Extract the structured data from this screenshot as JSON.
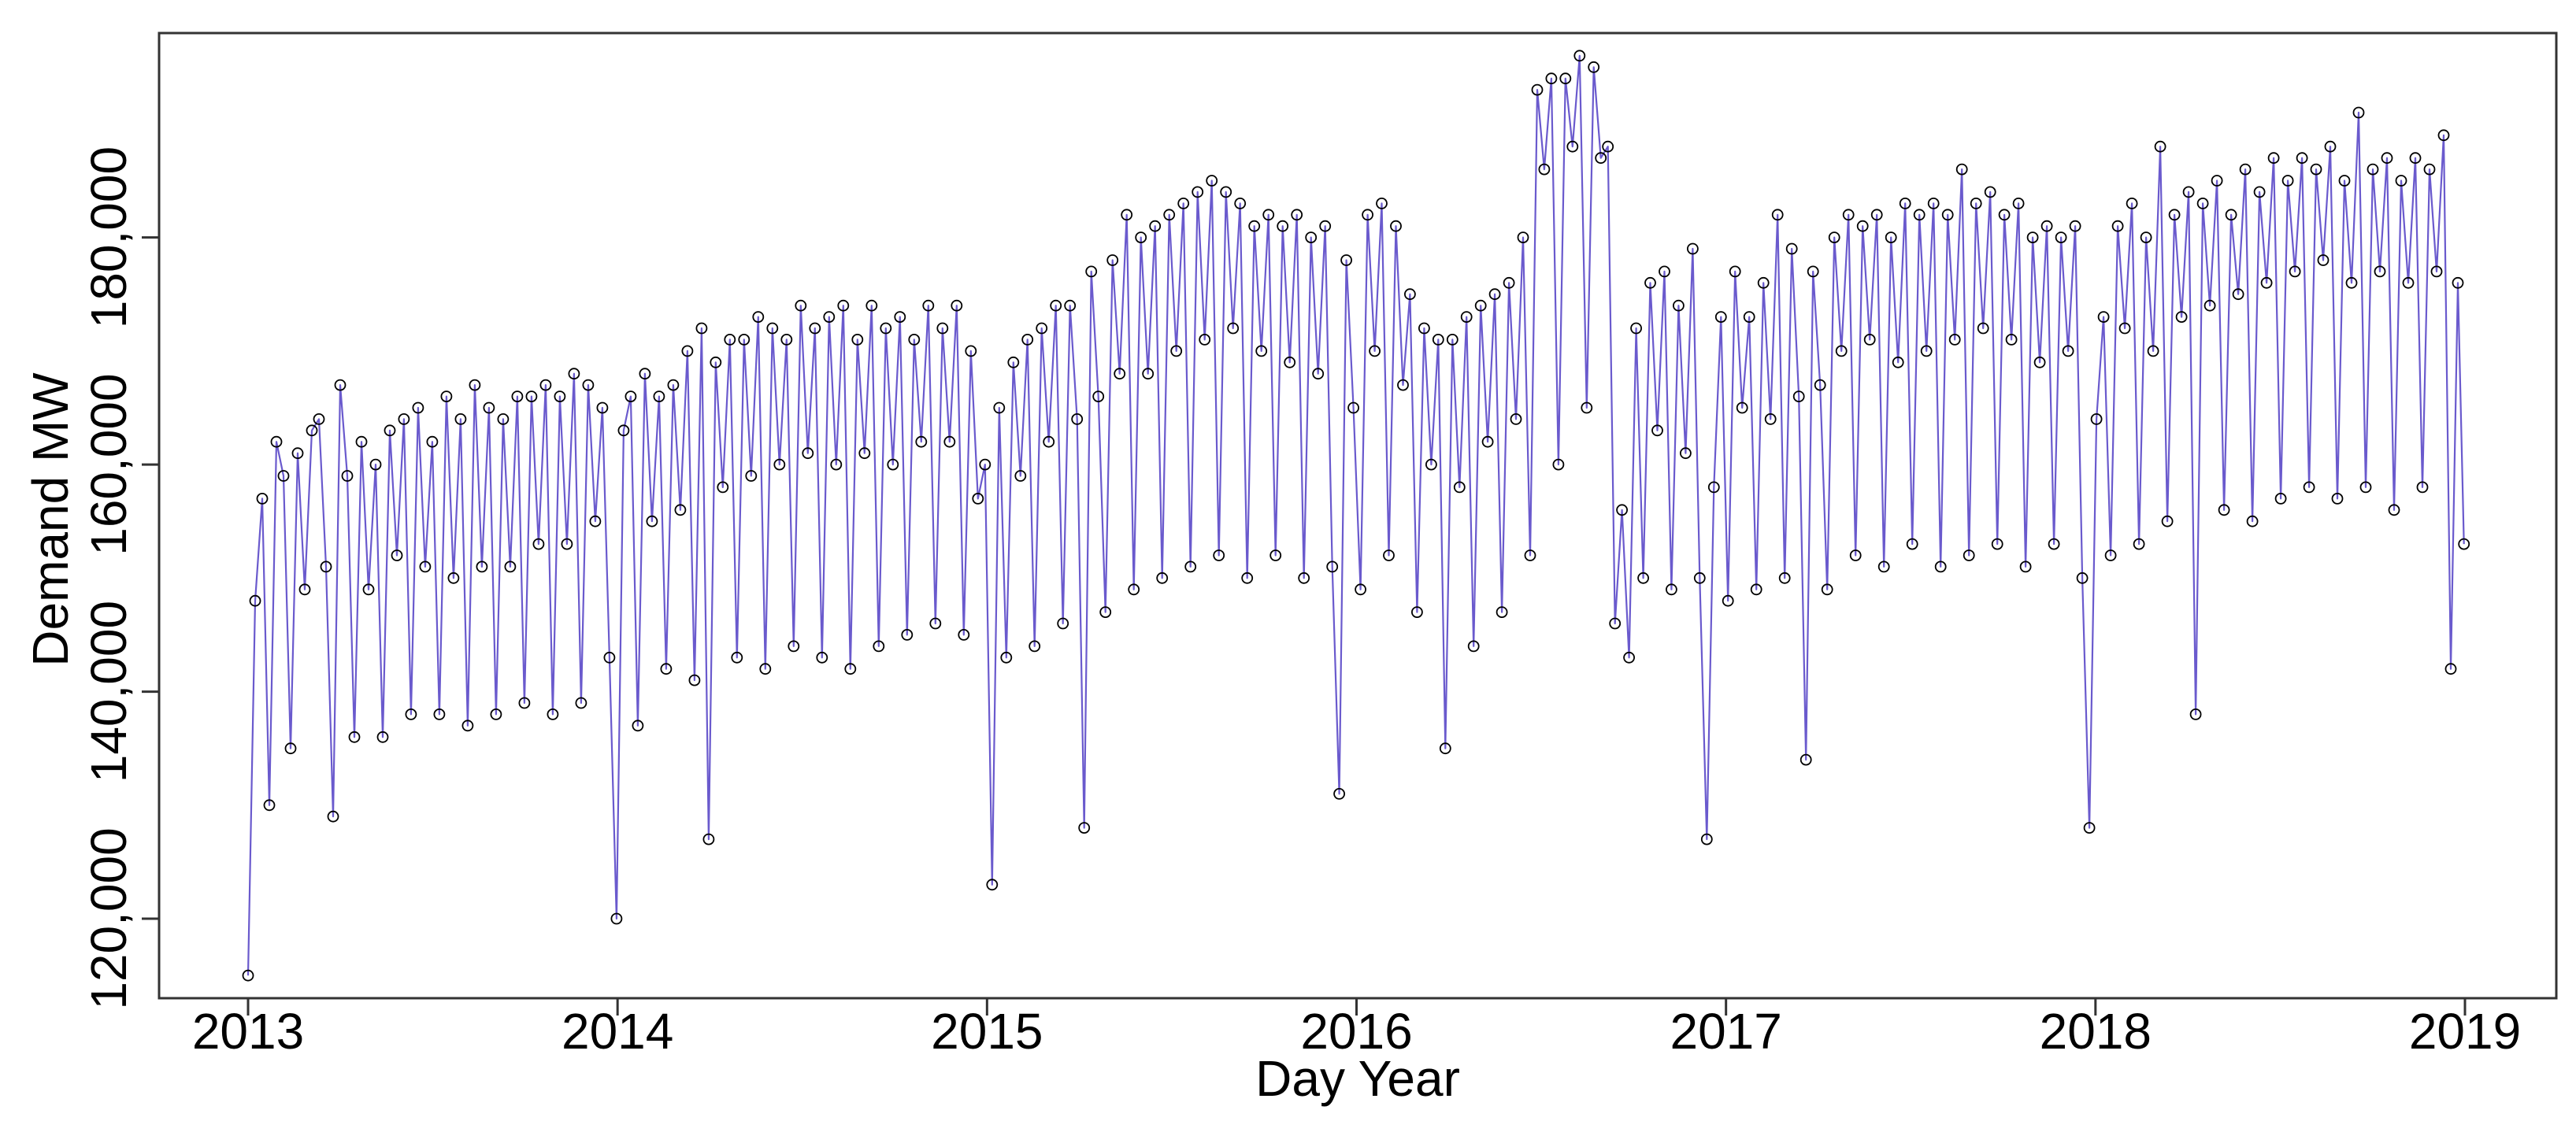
{
  "chart_data": {
    "type": "line",
    "title": "",
    "xlabel": "Day Year",
    "ylabel": "Demand MW",
    "x_ticks": [
      "2013",
      "2014",
      "2015",
      "2016",
      "2017",
      "2018",
      "2019"
    ],
    "y_ticks": [
      "120,000",
      "140,000",
      "160,000",
      "180,000"
    ],
    "x_range": [
      2013,
      2019
    ],
    "ylim": [
      113000,
      198000
    ],
    "grid": false,
    "legend": "none",
    "marker": "open-circle",
    "line_color": "#6a5acd",
    "marker_color": "#000000",
    "sampling": "weekly",
    "series": [
      {
        "x": [
          "2013-01-01",
          "2013-01-08",
          "2013-01-15",
          "2013-01-22",
          "2013-01-29",
          "2013-02-05",
          "2013-02-12",
          "2013-02-19",
          "2013-02-26",
          "2013-03-05",
          "2013-03-12",
          "2013-03-19",
          "2013-03-26",
          "2013-04-02",
          "2013-04-09",
          "2013-04-16",
          "2013-04-23",
          "2013-04-30",
          "2013-05-07",
          "2013-05-14",
          "2013-05-21",
          "2013-05-28",
          "2013-06-04",
          "2013-06-11",
          "2013-06-18",
          "2013-06-25",
          "2013-07-02",
          "2013-07-09",
          "2013-07-16",
          "2013-07-23",
          "2013-07-30",
          "2013-08-06",
          "2013-08-13",
          "2013-08-20",
          "2013-08-27",
          "2013-09-03",
          "2013-09-10",
          "2013-09-17",
          "2013-09-24",
          "2013-10-01",
          "2013-10-08",
          "2013-10-15",
          "2013-10-22",
          "2013-10-29",
          "2013-11-05",
          "2013-11-12",
          "2013-11-19",
          "2013-11-26",
          "2013-12-03",
          "2013-12-10",
          "2013-12-17",
          "2013-12-24",
          "2013-12-31",
          "2014-01-07",
          "2014-01-14",
          "2014-01-21",
          "2014-01-28",
          "2014-02-04",
          "2014-02-11",
          "2014-02-18",
          "2014-02-25",
          "2014-03-04",
          "2014-03-11",
          "2014-03-18",
          "2014-03-25",
          "2014-04-01",
          "2014-04-08",
          "2014-04-15",
          "2014-04-22",
          "2014-04-29",
          "2014-05-06",
          "2014-05-13",
          "2014-05-20",
          "2014-05-27",
          "2014-06-03",
          "2014-06-10",
          "2014-06-17",
          "2014-06-24",
          "2014-07-01",
          "2014-07-08",
          "2014-07-15",
          "2014-07-22",
          "2014-07-29",
          "2014-08-05",
          "2014-08-12",
          "2014-08-19",
          "2014-08-26",
          "2014-09-02",
          "2014-09-09",
          "2014-09-16",
          "2014-09-23",
          "2014-09-30",
          "2014-10-07",
          "2014-10-14",
          "2014-10-21",
          "2014-10-28",
          "2014-11-04",
          "2014-11-11",
          "2014-11-18",
          "2014-11-25",
          "2014-12-02",
          "2014-12-09",
          "2014-12-16",
          "2014-12-23",
          "2014-12-30",
          "2015-01-06",
          "2015-01-13",
          "2015-01-20",
          "2015-01-27",
          "2015-02-03",
          "2015-02-10",
          "2015-02-17",
          "2015-02-24",
          "2015-03-03",
          "2015-03-10",
          "2015-03-17",
          "2015-03-24",
          "2015-03-31",
          "2015-04-07",
          "2015-04-14",
          "2015-04-21",
          "2015-04-28",
          "2015-05-05",
          "2015-05-12",
          "2015-05-19",
          "2015-05-26",
          "2015-06-02",
          "2015-06-09",
          "2015-06-16",
          "2015-06-23",
          "2015-06-30",
          "2015-07-07",
          "2015-07-14",
          "2015-07-21",
          "2015-07-28",
          "2015-08-04",
          "2015-08-11",
          "2015-08-18",
          "2015-08-25",
          "2015-09-01",
          "2015-09-08",
          "2015-09-15",
          "2015-09-22",
          "2015-09-29",
          "2015-10-06",
          "2015-10-13",
          "2015-10-20",
          "2015-10-27",
          "2015-11-03",
          "2015-11-10",
          "2015-11-17",
          "2015-11-24",
          "2015-12-01",
          "2015-12-08",
          "2015-12-15",
          "2015-12-22",
          "2015-12-29",
          "2016-01-05",
          "2016-01-12",
          "2016-01-19",
          "2016-01-26",
          "2016-02-02",
          "2016-02-09",
          "2016-02-16",
          "2016-02-23",
          "2016-03-01",
          "2016-03-08",
          "2016-03-15",
          "2016-03-22",
          "2016-03-29",
          "2016-04-05",
          "2016-04-12",
          "2016-04-19",
          "2016-04-26",
          "2016-05-03",
          "2016-05-10",
          "2016-05-17",
          "2016-05-24",
          "2016-05-31",
          "2016-06-07",
          "2016-06-14",
          "2016-06-21",
          "2016-06-28",
          "2016-07-05",
          "2016-07-12",
          "2016-07-19",
          "2016-07-26",
          "2016-08-02",
          "2016-08-09",
          "2016-08-16",
          "2016-08-23",
          "2016-08-30",
          "2016-09-06",
          "2016-09-13",
          "2016-09-20",
          "2016-09-27",
          "2016-10-04",
          "2016-10-11",
          "2016-10-18",
          "2016-10-25",
          "2016-11-01",
          "2016-11-08",
          "2016-11-15",
          "2016-11-22",
          "2016-11-29",
          "2016-12-06",
          "2016-12-13",
          "2016-12-20",
          "2016-12-27",
          "2017-01-03",
          "2017-01-10",
          "2017-01-17",
          "2017-01-24",
          "2017-01-31",
          "2017-02-07",
          "2017-02-14",
          "2017-02-21",
          "2017-02-28",
          "2017-03-07",
          "2017-03-14",
          "2017-03-21",
          "2017-03-28",
          "2017-04-04",
          "2017-04-11",
          "2017-04-18",
          "2017-04-25",
          "2017-05-02",
          "2017-05-09",
          "2017-05-16",
          "2017-05-23",
          "2017-05-30",
          "2017-06-06",
          "2017-06-13",
          "2017-06-20",
          "2017-06-27",
          "2017-07-04",
          "2017-07-11",
          "2017-07-18",
          "2017-07-25",
          "2017-08-01",
          "2017-08-08",
          "2017-08-15",
          "2017-08-22",
          "2017-08-29",
          "2017-09-05",
          "2017-09-12",
          "2017-09-19",
          "2017-09-26",
          "2017-10-03",
          "2017-10-10",
          "2017-10-17",
          "2017-10-24",
          "2017-10-31",
          "2017-11-07",
          "2017-11-14",
          "2017-11-21",
          "2017-11-28",
          "2017-12-05",
          "2017-12-12",
          "2017-12-19",
          "2017-12-26",
          "2018-01-02",
          "2018-01-09",
          "2018-01-16",
          "2018-01-23",
          "2018-01-30",
          "2018-02-06",
          "2018-02-13",
          "2018-02-20",
          "2018-02-27",
          "2018-03-06",
          "2018-03-13",
          "2018-03-20",
          "2018-03-27",
          "2018-04-03",
          "2018-04-10",
          "2018-04-17",
          "2018-04-24",
          "2018-05-01",
          "2018-05-08",
          "2018-05-15",
          "2018-05-22",
          "2018-05-29",
          "2018-06-05",
          "2018-06-12",
          "2018-06-19",
          "2018-06-26",
          "2018-07-03",
          "2018-07-10",
          "2018-07-17",
          "2018-07-24",
          "2018-07-31",
          "2018-08-07",
          "2018-08-14",
          "2018-08-21",
          "2018-08-28",
          "2018-09-04",
          "2018-09-11",
          "2018-09-18",
          "2018-09-25",
          "2018-10-02",
          "2018-10-09",
          "2018-10-16",
          "2018-10-23",
          "2018-10-30",
          "2018-11-06",
          "2018-11-13",
          "2018-11-20",
          "2018-11-27",
          "2018-12-04",
          "2018-12-11",
          "2018-12-18",
          "2018-12-25",
          "2018-12-31"
        ],
        "y": [
          115000,
          148000,
          157000,
          130000,
          162000,
          159000,
          135000,
          161000,
          149000,
          163000,
          164000,
          151000,
          129000,
          167000,
          159000,
          136000,
          162000,
          149000,
          160000,
          136000,
          163000,
          152000,
          164000,
          138000,
          165000,
          151000,
          162000,
          138000,
          166000,
          150000,
          164000,
          137000,
          167000,
          151000,
          165000,
          138000,
          164000,
          151000,
          166000,
          139000,
          166000,
          153000,
          167000,
          138000,
          166000,
          153000,
          168000,
          139000,
          167000,
          155000,
          165000,
          143000,
          120000,
          163000,
          166000,
          137000,
          168000,
          155000,
          166000,
          142000,
          167000,
          156000,
          170000,
          141000,
          172000,
          127000,
          169000,
          158000,
          171000,
          143000,
          171000,
          159000,
          173000,
          142000,
          172000,
          160000,
          171000,
          144000,
          174000,
          161000,
          172000,
          143000,
          173000,
          160000,
          174000,
          142000,
          171000,
          161000,
          174000,
          144000,
          172000,
          160000,
          173000,
          145000,
          171000,
          162000,
          174000,
          146000,
          172000,
          162000,
          174000,
          145000,
          170000,
          157000,
          160000,
          123000,
          165000,
          143000,
          169000,
          159000,
          171000,
          144000,
          172000,
          162000,
          174000,
          146000,
          174000,
          164000,
          128000,
          177000,
          166000,
          147000,
          178000,
          168000,
          182000,
          149000,
          180000,
          168000,
          181000,
          150000,
          182000,
          170000,
          183000,
          151000,
          184000,
          171000,
          185000,
          152000,
          184000,
          172000,
          183000,
          150000,
          181000,
          170000,
          182000,
          152000,
          181000,
          169000,
          182000,
          150000,
          180000,
          168000,
          181000,
          151000,
          131000,
          178000,
          165000,
          149000,
          182000,
          170000,
          183000,
          152000,
          181000,
          167000,
          175000,
          147000,
          172000,
          160000,
          171000,
          135000,
          171000,
          158000,
          173000,
          144000,
          174000,
          162000,
          175000,
          147000,
          176000,
          164000,
          180000,
          152000,
          193000,
          186000,
          194000,
          160000,
          194000,
          188000,
          196000,
          165000,
          195000,
          187000,
          188000,
          146000,
          156000,
          143000,
          172000,
          150000,
          176000,
          163000,
          177000,
          149000,
          174000,
          161000,
          179000,
          150000,
          127000,
          158000,
          173000,
          148000,
          177000,
          165000,
          173000,
          149000,
          176000,
          164000,
          182000,
          150000,
          179000,
          166000,
          134000,
          177000,
          167000,
          149000,
          180000,
          170000,
          182000,
          152000,
          181000,
          171000,
          182000,
          151000,
          180000,
          169000,
          183000,
          153000,
          182000,
          170000,
          183000,
          151000,
          182000,
          171000,
          186000,
          152000,
          183000,
          172000,
          184000,
          153000,
          182000,
          171000,
          183000,
          151000,
          180000,
          169000,
          181000,
          153000,
          180000,
          170000,
          181000,
          150000,
          128000,
          164000,
          173000,
          152000,
          181000,
          172000,
          183000,
          153000,
          180000,
          170000,
          188000,
          155000,
          182000,
          173000,
          184000,
          138000,
          183000,
          174000,
          185000,
          156000,
          182000,
          175000,
          186000,
          155000,
          184000,
          176000,
          187000,
          157000,
          185000,
          177000,
          187000,
          158000,
          186000,
          178000,
          188000,
          157000,
          185000,
          176000,
          191000,
          158000,
          186000,
          177000,
          187000,
          156000,
          185000,
          176000,
          187000,
          158000,
          186000,
          177000,
          189000,
          142000,
          176000,
          153000
        ]
      }
    ]
  }
}
